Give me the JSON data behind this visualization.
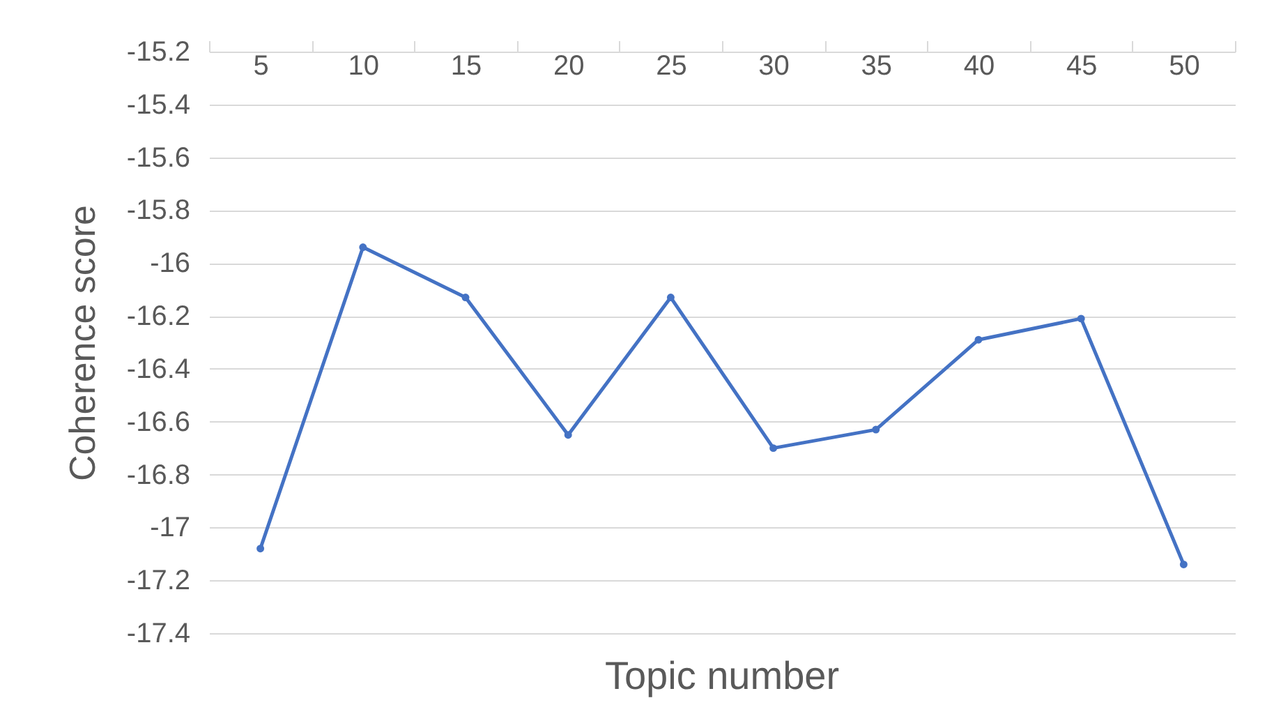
{
  "chart_data": {
    "type": "line",
    "xlabel": "Topic number",
    "ylabel": "Coherence score",
    "categories": [
      "5",
      "10",
      "15",
      "20",
      "25",
      "30",
      "35",
      "40",
      "45",
      "50"
    ],
    "series": [
      {
        "color": "#4472c4",
        "values": [
          -17.08,
          -15.94,
          -16.13,
          -16.65,
          -16.13,
          -16.7,
          -16.63,
          -16.29,
          -16.21,
          -17.14
        ]
      }
    ],
    "ylim": [
      -17.4,
      -15.2
    ],
    "yticks": [
      -17.4,
      -17.2,
      {
        "value": -17,
        "label": "-17"
      },
      -16.8,
      -16.6,
      -16.4,
      -16.2,
      {
        "value": -16,
        "label": "-16"
      },
      -15.8,
      -15.6,
      -15.4,
      -15.2
    ],
    "grid": "y",
    "marker": "circle",
    "line_style": "solid"
  }
}
